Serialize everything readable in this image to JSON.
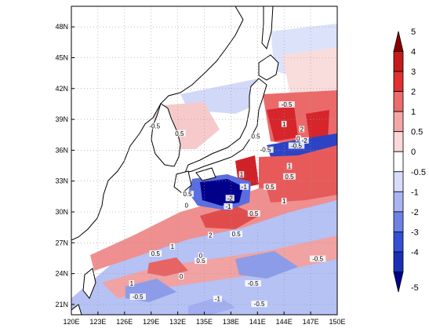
{
  "map": {
    "lon_ticks": [
      "120E",
      "123E",
      "126E",
      "129E",
      "132E",
      "135E",
      "138E",
      "141E",
      "144E",
      "147E",
      "150E"
    ],
    "lat_ticks": [
      "21N",
      "24N",
      "27N",
      "30N",
      "33N",
      "36N",
      "39N",
      "42N",
      "45N",
      "48N"
    ],
    "lon_range": [
      120,
      150
    ],
    "lat_range": [
      20,
      50
    ],
    "grid": "dotted",
    "colors": {
      "strong_negative": "#00008b",
      "negative": "#6b7fe0",
      "weak_negative": "#c6cdf5",
      "weak_positive": "#f6c4c4",
      "positive": "#ec7b7b",
      "strong_positive": "#d6252b",
      "land": "#ffffff",
      "coastline": "#000000"
    },
    "contour_labels": [
      {
        "text": "-0.5",
        "lon": 129.4,
        "lat": 38.2
      },
      {
        "text": "0.5",
        "lon": 132.2,
        "lat": 37.5
      },
      {
        "text": "-0.5",
        "lon": 141.9,
        "lat": 35.9
      },
      {
        "text": "0.5",
        "lon": 140.8,
        "lat": 37.2
      },
      {
        "text": "-0.5",
        "lon": 144.3,
        "lat": 40.3
      },
      {
        "text": "1",
        "lon": 144.0,
        "lat": 38.4
      },
      {
        "text": "0",
        "lon": 145.6,
        "lat": 37.0
      },
      {
        "text": "-0.5",
        "lon": 145.4,
        "lat": 36.3
      },
      {
        "text": "2",
        "lon": 146.0,
        "lat": 37.9
      },
      {
        "text": "-2",
        "lon": 146.3,
        "lat": 36.8
      },
      {
        "text": "1",
        "lon": 144.6,
        "lat": 34.3
      },
      {
        "text": "0.5",
        "lon": 144.6,
        "lat": 33.3
      },
      {
        "text": "0.5",
        "lon": 142.4,
        "lat": 32.3
      },
      {
        "text": "1",
        "lon": 144.0,
        "lat": 30.9
      },
      {
        "text": "1",
        "lon": 139.2,
        "lat": 33.5
      },
      {
        "text": "-1",
        "lon": 139.5,
        "lat": 32.3
      },
      {
        "text": "0.5",
        "lon": 133.1,
        "lat": 31.6
      },
      {
        "text": "-2",
        "lon": 137.9,
        "lat": 31.2
      },
      {
        "text": "-1",
        "lon": 137.7,
        "lat": 30.4
      },
      {
        "text": "0",
        "lon": 133.0,
        "lat": 30.5
      },
      {
        "text": "0.5",
        "lon": 140.6,
        "lat": 29.7
      },
      {
        "text": "2",
        "lon": 135.7,
        "lat": 27.6
      },
      {
        "text": "0.5",
        "lon": 138.6,
        "lat": 27.7
      },
      {
        "text": "1",
        "lon": 131.4,
        "lat": 26.5
      },
      {
        "text": "0.5",
        "lon": 129.5,
        "lat": 25.8
      },
      {
        "text": "0.5",
        "lon": 134.6,
        "lat": 25.1
      },
      {
        "text": "-0.5",
        "lon": 147.8,
        "lat": 25.3
      },
      {
        "text": "0",
        "lon": 134.6,
        "lat": 25.6
      },
      {
        "text": "-0.5",
        "lon": 140.5,
        "lat": 22.9
      },
      {
        "text": "1",
        "lon": 126.8,
        "lat": 22.9
      },
      {
        "text": "-0.5",
        "lon": 127.5,
        "lat": 21.6
      },
      {
        "text": "-1",
        "lon": 136.5,
        "lat": 21.4
      },
      {
        "text": "-0.5",
        "lon": 141.2,
        "lat": 20.9
      },
      {
        "text": "0",
        "lon": 132.4,
        "lat": 23.6
      }
    ]
  },
  "colorbar": {
    "labels": [
      "5",
      "4",
      "3",
      "2",
      "1",
      "0.5",
      "0",
      "-0.5",
      "-1",
      "-2",
      "-3",
      "-4",
      "-5"
    ],
    "colors": [
      "#8b0000",
      "#c51b1b",
      "#e03030",
      "#ec6b6b",
      "#f4a6a6",
      "#fbd7d7",
      "#ffffff",
      "#d6dcfa",
      "#a9b5f2",
      "#6e82e6",
      "#3550d6",
      "#1a2fb8",
      "#00008b"
    ]
  }
}
